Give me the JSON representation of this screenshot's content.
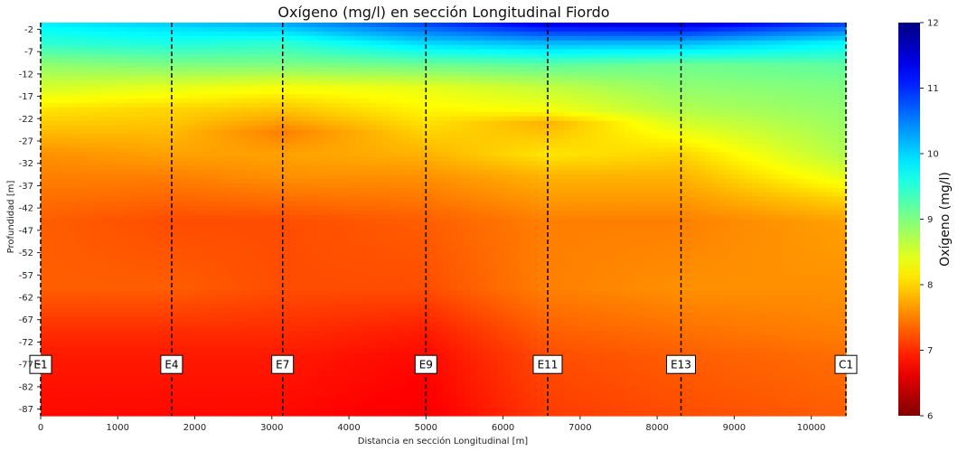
{
  "chart_data": {
    "type": "heatmap",
    "title": "Oxígeno (mg/l) en sección Longitudinal Fiordo",
    "xlabel": "Distancia en sección Longitudinal [m]",
    "ylabel": "Profundidad [m]",
    "xlim": [
      0,
      10450
    ],
    "ylim": [
      -88.5,
      -0.5
    ],
    "x_ticks": [
      0,
      1000,
      2000,
      3000,
      4000,
      5000,
      6000,
      7000,
      8000,
      9000,
      10000
    ],
    "x_tick_labels": [
      "0",
      "1000",
      "2000",
      "3000",
      "4000",
      "5000",
      "6000",
      "7000",
      "8000",
      "9000",
      "10000"
    ],
    "y_ticks": [
      -2,
      -7,
      -12,
      -17,
      -22,
      -27,
      -32,
      -37,
      -42,
      -47,
      -52,
      -57,
      -62,
      -67,
      -72,
      -77,
      -82,
      -87
    ],
    "y_tick_labels": [
      "-2",
      "-7",
      "-12",
      "-17",
      "-22",
      "-27",
      "-32",
      "-37",
      "-42",
      "-47",
      "-52",
      "-57",
      "-62",
      "-67",
      "-72",
      "-77",
      "-82",
      "-87"
    ],
    "colormap": "jet_r",
    "colorbar": {
      "label": "Oxígeno (mg/l)",
      "range": [
        6,
        12
      ],
      "ticks": [
        6,
        7,
        8,
        9,
        10,
        11,
        12
      ],
      "tick_labels": [
        "6",
        "7",
        "8",
        "9",
        "10",
        "11",
        "12"
      ]
    },
    "stations": [
      {
        "name": "E1",
        "x": 0
      },
      {
        "name": "E4",
        "x": 1700
      },
      {
        "name": "E7",
        "x": 3140
      },
      {
        "name": "E9",
        "x": 5000
      },
      {
        "name": "E11",
        "x": 6580
      },
      {
        "name": "E13",
        "x": 8310
      },
      {
        "name": "C1",
        "x": 10450
      }
    ],
    "station_label_depth": -77,
    "grid": false,
    "profiles": [
      {
        "x": 0,
        "depths": [
          -1,
          -5,
          -10,
          -15,
          -20,
          -30,
          -35,
          -45,
          -60,
          -70,
          -75,
          -88
        ],
        "values": [
          9.8,
          9.5,
          8.9,
          8.5,
          8.1,
          7.6,
          7.5,
          7.3,
          7.3,
          7.0,
          6.9,
          6.8
        ]
      },
      {
        "x": 1700,
        "depths": [
          -1,
          -5,
          -10,
          -15,
          -20,
          -30,
          -35,
          -45,
          -60,
          -70,
          -75,
          -88
        ],
        "values": [
          10.0,
          9.6,
          9.0,
          8.4,
          8.0,
          7.7,
          7.5,
          7.2,
          7.3,
          7.0,
          6.9,
          6.8
        ]
      },
      {
        "x": 3140,
        "depths": [
          -1,
          -5,
          -10,
          -15,
          -20,
          -25,
          -30,
          -35,
          -45,
          -60,
          -70,
          -75,
          -88
        ],
        "values": [
          10.2,
          9.5,
          9.0,
          8.3,
          7.9,
          7.5,
          7.7,
          7.6,
          7.2,
          7.2,
          7.0,
          6.9,
          6.8
        ]
      },
      {
        "x": 5000,
        "depths": [
          -1,
          -5,
          -10,
          -15,
          -20,
          -30,
          -35,
          -45,
          -60,
          -70,
          -75,
          -88
        ],
        "values": [
          10.8,
          10.0,
          9.1,
          8.4,
          8.2,
          7.8,
          7.6,
          7.3,
          7.2,
          6.9,
          6.8,
          6.7
        ]
      },
      {
        "x": 6580,
        "depths": [
          -1,
          -5,
          -10,
          -15,
          -20,
          -23,
          -30,
          -35,
          -45,
          -60,
          -70,
          -75,
          -88
        ],
        "values": [
          11.3,
          10.2,
          9.2,
          8.6,
          8.3,
          7.8,
          8.1,
          7.8,
          7.5,
          7.5,
          7.3,
          7.2,
          7.1
        ]
      },
      {
        "x": 8310,
        "depths": [
          -1,
          -5,
          -10,
          -15,
          -20,
          -30,
          -35,
          -45,
          -60,
          -70,
          -75,
          -88
        ],
        "values": [
          11.4,
          10.2,
          9.1,
          8.9,
          8.7,
          8.0,
          7.8,
          7.5,
          7.6,
          7.4,
          7.3,
          7.2
        ]
      },
      {
        "x": 10450,
        "depths": [
          -1,
          -5,
          -10,
          -15,
          -20,
          -30,
          -35,
          -40,
          -45,
          -60,
          -70,
          -75,
          -88
        ],
        "values": [
          10.8,
          9.8,
          9.2,
          9.0,
          8.9,
          8.7,
          8.4,
          8.0,
          7.7,
          7.6,
          7.5,
          7.4,
          7.3
        ]
      }
    ]
  }
}
